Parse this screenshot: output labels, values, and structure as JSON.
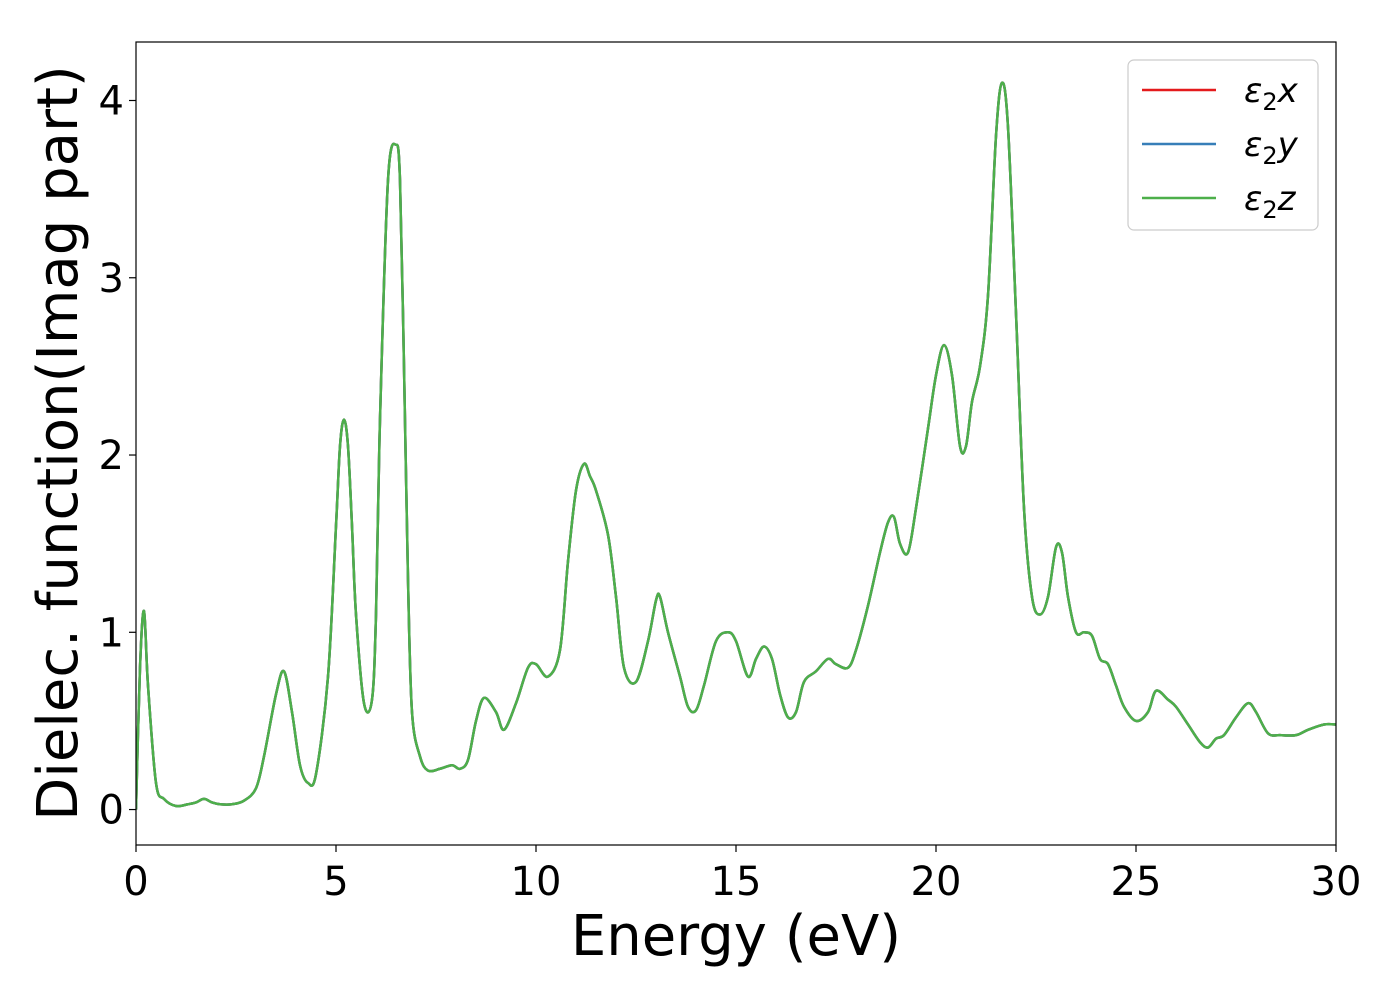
{
  "chart_data": {
    "type": "line",
    "xlabel": "Energy (eV)",
    "ylabel": "Dielec. function(Imag part)",
    "xlim": [
      0,
      30
    ],
    "ylim": [
      -0.2,
      4.33
    ],
    "xticks": [
      0,
      5,
      10,
      15,
      20,
      25,
      30
    ],
    "yticks": [
      0,
      1,
      2,
      3,
      4
    ],
    "grid": false,
    "legend_position": "top-right",
    "series": [
      {
        "name": "ε2x",
        "legend": {
          "base": "ε",
          "sub": "2",
          "suffix": "x"
        },
        "color": "#e41a1c"
      },
      {
        "name": "ε2y",
        "legend": {
          "base": "ε",
          "sub": "2",
          "suffix": "y"
        },
        "color": "#377eb8"
      },
      {
        "name": "ε2z",
        "legend": {
          "base": "ε",
          "sub": "2",
          "suffix": "z"
        },
        "color": "#4daf4a"
      }
    ],
    "shared_values": {
      "x": [
        0,
        0.1,
        0.2,
        0.3,
        0.5,
        0.7,
        1.0,
        1.3,
        1.5,
        1.7,
        1.9,
        2.1,
        2.4,
        2.7,
        3.0,
        3.2,
        3.5,
        3.7,
        3.9,
        4.1,
        4.3,
        4.5,
        4.8,
        5.0,
        5.1,
        5.2,
        5.3,
        5.4,
        5.5,
        5.7,
        5.9,
        6.0,
        6.1,
        6.3,
        6.5,
        6.6,
        6.7,
        6.8,
        6.9,
        7.1,
        7.3,
        7.6,
        7.9,
        8.1,
        8.3,
        8.5,
        8.7,
        9.0,
        9.2,
        9.5,
        9.8,
        10.0,
        10.3,
        10.6,
        10.8,
        11.0,
        11.2,
        11.35,
        11.5,
        11.8,
        12.0,
        12.2,
        12.5,
        12.8,
        13.0,
        13.1,
        13.3,
        13.6,
        13.8,
        14.0,
        14.2,
        14.5,
        14.8,
        15.0,
        15.3,
        15.5,
        15.7,
        15.9,
        16.1,
        16.3,
        16.5,
        16.7,
        17.0,
        17.3,
        17.5,
        17.8,
        18.0,
        18.3,
        18.6,
        18.8,
        18.95,
        19.1,
        19.3,
        19.5,
        19.8,
        20.0,
        20.2,
        20.4,
        20.6,
        20.75,
        20.9,
        21.1,
        21.3,
        21.5,
        21.65,
        21.8,
        22.0,
        22.2,
        22.4,
        22.6,
        22.8,
        23.0,
        23.15,
        23.3,
        23.5,
        23.7,
        23.9,
        24.1,
        24.3,
        24.5,
        24.7,
        25.0,
        25.3,
        25.5,
        25.8,
        26.0,
        26.3,
        26.6,
        26.8,
        27.0,
        27.2,
        27.5,
        27.8,
        28.0,
        28.3,
        28.6,
        29.0,
        29.3,
        29.7,
        30.0
      ],
      "y": [
        0.0,
        0.8,
        1.12,
        0.7,
        0.15,
        0.06,
        0.02,
        0.03,
        0.04,
        0.06,
        0.04,
        0.03,
        0.03,
        0.05,
        0.12,
        0.3,
        0.65,
        0.78,
        0.55,
        0.25,
        0.15,
        0.2,
        0.75,
        1.6,
        2.05,
        2.2,
        2.05,
        1.6,
        1.1,
        0.6,
        0.62,
        1.1,
        2.2,
        3.55,
        3.75,
        3.55,
        2.5,
        1.3,
        0.55,
        0.3,
        0.22,
        0.23,
        0.25,
        0.23,
        0.28,
        0.5,
        0.63,
        0.55,
        0.45,
        0.6,
        0.8,
        0.82,
        0.75,
        0.9,
        1.4,
        1.8,
        1.95,
        1.88,
        1.8,
        1.55,
        1.2,
        0.8,
        0.72,
        0.95,
        1.18,
        1.2,
        1.0,
        0.75,
        0.58,
        0.56,
        0.7,
        0.95,
        1.0,
        0.95,
        0.75,
        0.85,
        0.92,
        0.85,
        0.65,
        0.52,
        0.55,
        0.72,
        0.78,
        0.85,
        0.82,
        0.8,
        0.9,
        1.15,
        1.45,
        1.62,
        1.65,
        1.5,
        1.45,
        1.7,
        2.15,
        2.45,
        2.62,
        2.45,
        2.05,
        2.05,
        2.3,
        2.5,
        2.9,
        3.8,
        4.1,
        3.85,
        2.8,
        1.7,
        1.2,
        1.1,
        1.2,
        1.48,
        1.45,
        1.2,
        1.0,
        1.0,
        0.98,
        0.85,
        0.82,
        0.7,
        0.58,
        0.5,
        0.55,
        0.67,
        0.62,
        0.58,
        0.48,
        0.38,
        0.35,
        0.4,
        0.42,
        0.52,
        0.6,
        0.55,
        0.43,
        0.42,
        0.42,
        0.45,
        0.48,
        0.48
      ]
    }
  }
}
